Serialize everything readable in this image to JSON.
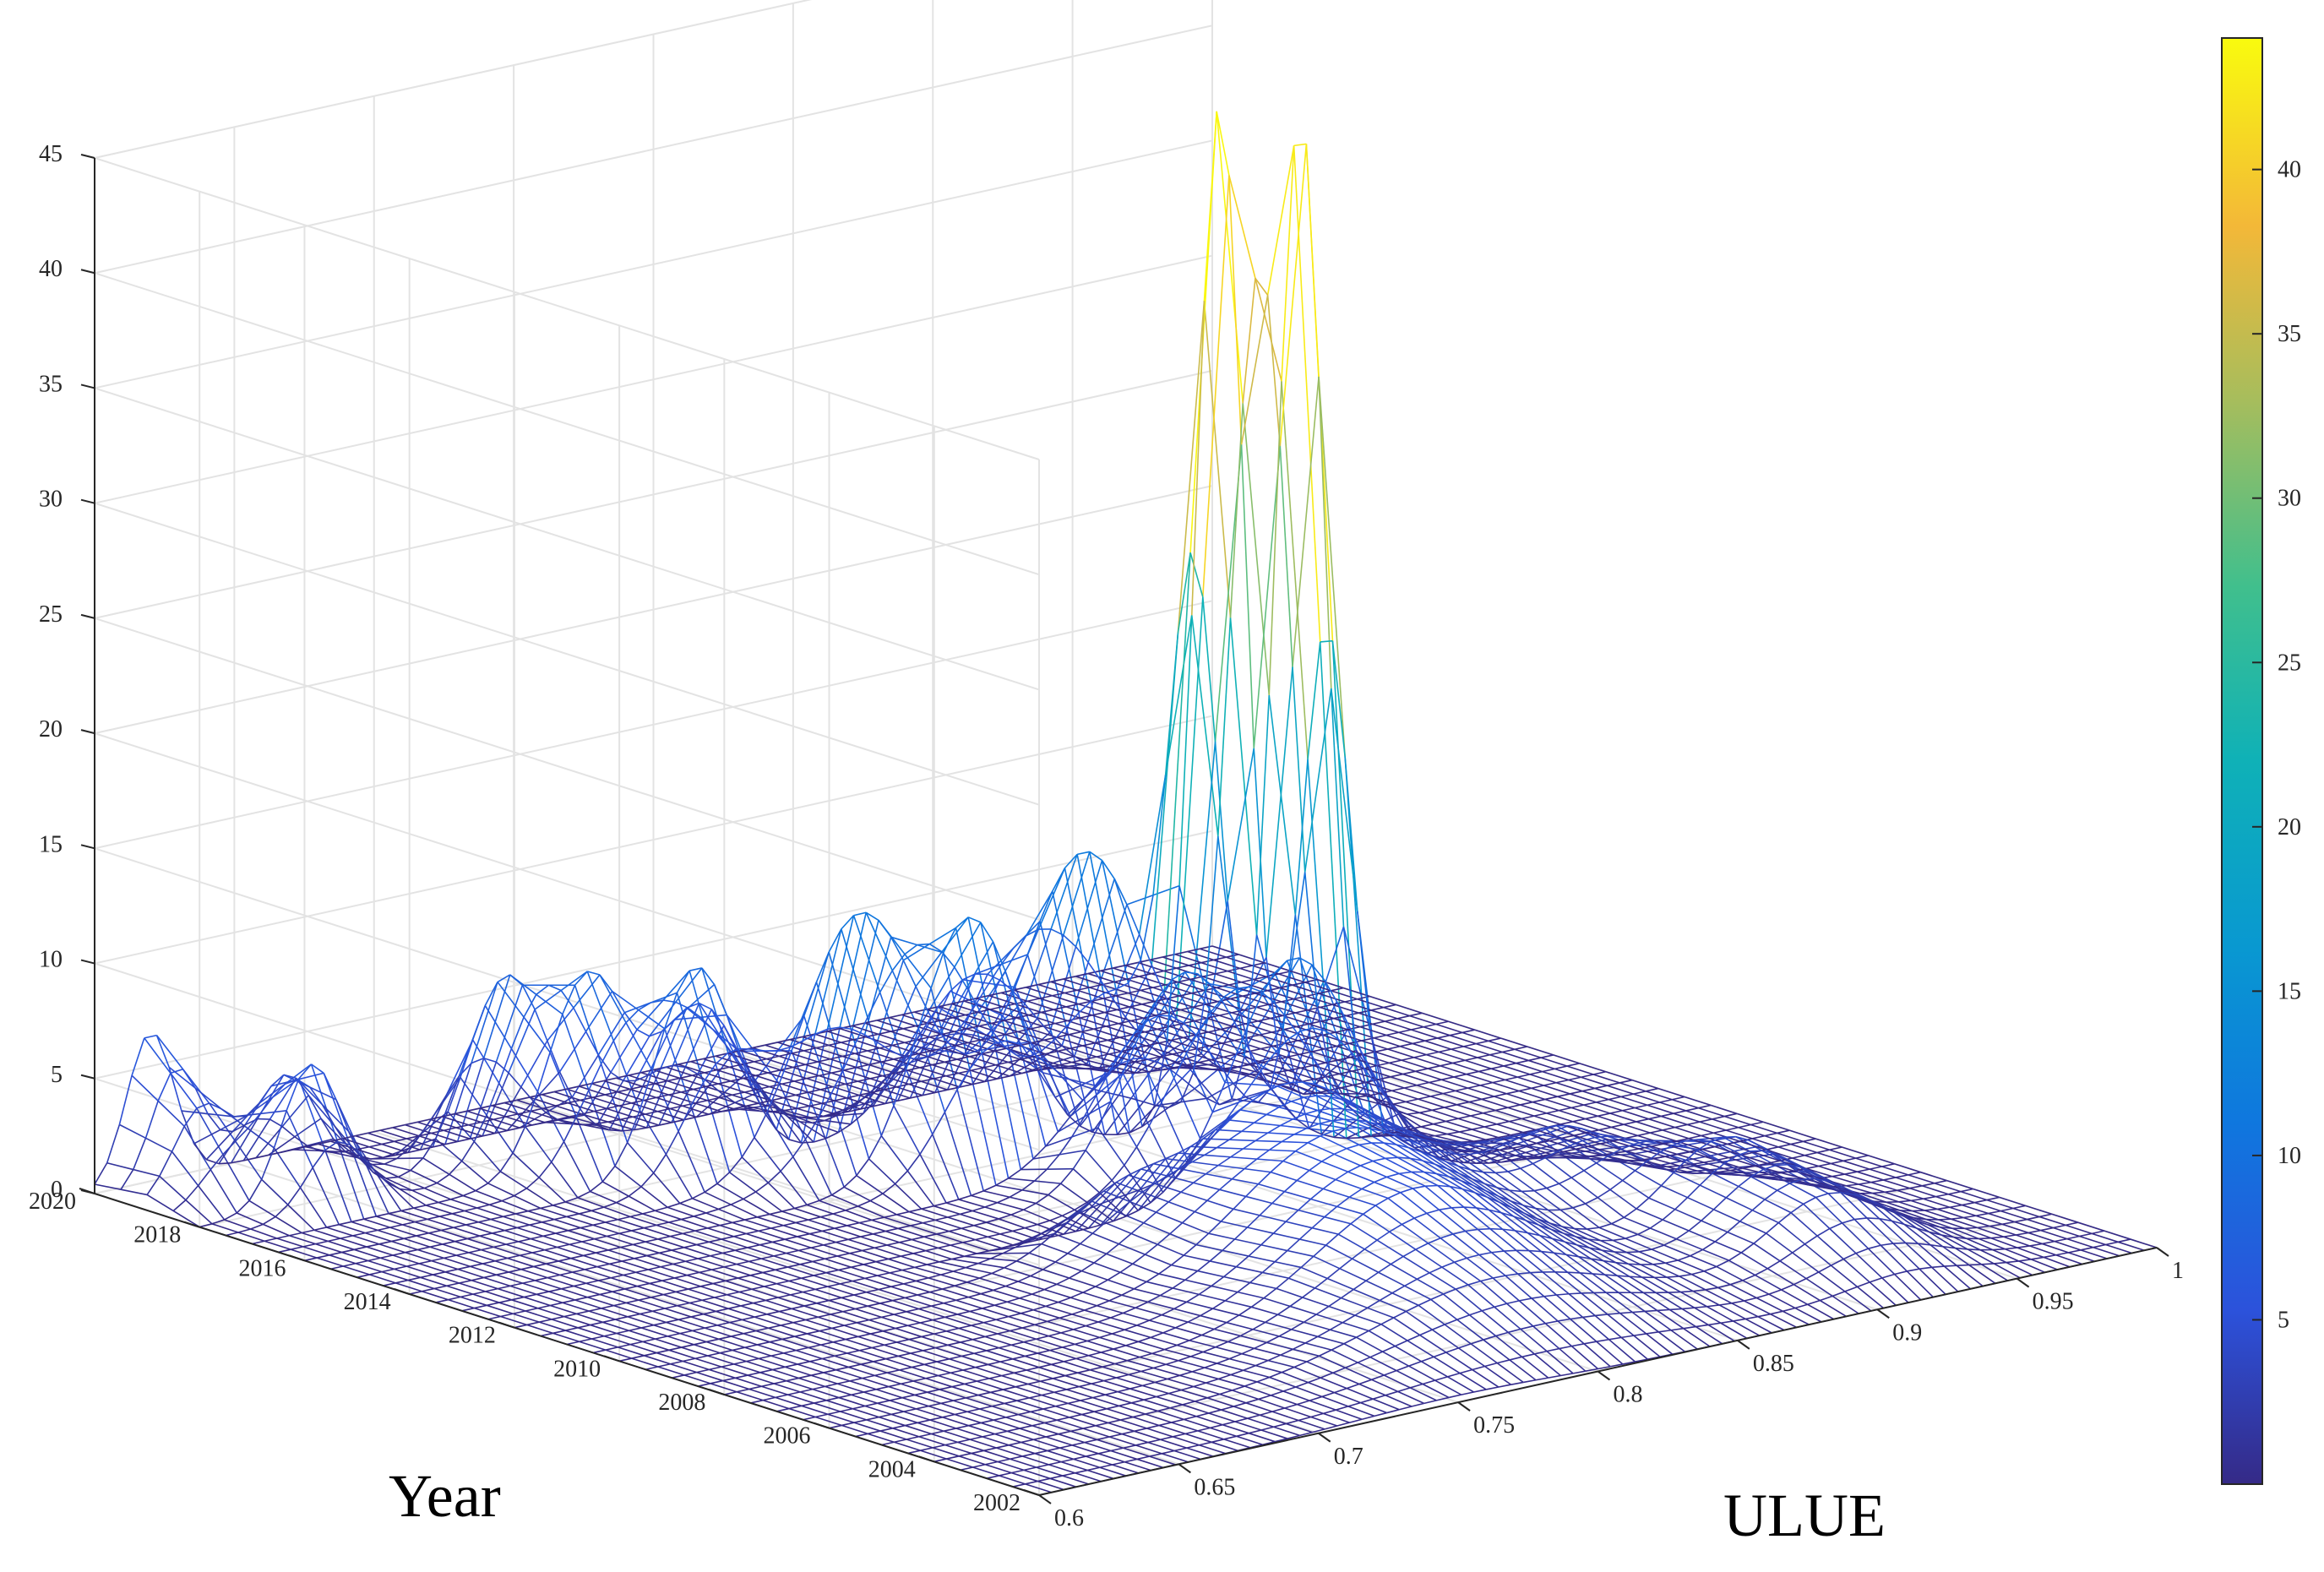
{
  "chart_data": {
    "type": "surface",
    "title": "",
    "xlabel": "ULUE",
    "ylabel": "Year",
    "zlabel": "",
    "x_ticks": [
      "0.6",
      "0.65",
      "0.7",
      "0.75",
      "0.8",
      "0.85",
      "0.9",
      "0.95",
      "1"
    ],
    "y_ticks": [
      "2002",
      "2004",
      "2006",
      "2008",
      "2010",
      "2012",
      "2014",
      "2016",
      "2018",
      "2020"
    ],
    "z_ticks": [
      "0",
      "5",
      "10",
      "15",
      "20",
      "25",
      "30",
      "35",
      "40",
      "45"
    ],
    "colorbar_ticks": [
      "5",
      "10",
      "15",
      "20",
      "25",
      "30",
      "35",
      "40"
    ],
    "xlim": [
      0.6,
      1.0
    ],
    "ylim": [
      2002,
      2020
    ],
    "zlim": [
      0,
      45
    ],
    "clim": [
      0,
      44
    ],
    "colormap": "parula",
    "grid": true,
    "series": [
      {
        "year": 2002,
        "peaks": [
          {
            "x": 0.75,
            "z": 0.3,
            "w": 0.05
          }
        ]
      },
      {
        "year": 2004,
        "peaks": [
          {
            "x": 0.8,
            "z": 2.6,
            "w": 0.06
          },
          {
            "x": 0.92,
            "z": 3.0,
            "w": 0.03
          }
        ]
      },
      {
        "year": 2006,
        "peaks": [
          {
            "x": 0.81,
            "z": 4.8,
            "w": 0.05
          },
          {
            "x": 0.92,
            "z": 4.0,
            "w": 0.03
          }
        ]
      },
      {
        "year": 2008,
        "peaks": [
          {
            "x": 0.82,
            "z": 5.6,
            "w": 0.05
          },
          {
            "x": 0.9,
            "z": 3.2,
            "w": 0.03
          }
        ]
      },
      {
        "year": 2010,
        "peaks": [
          {
            "x": 0.84,
            "z": 5.6,
            "w": 0.04
          },
          {
            "x": 0.78,
            "z": 2.5,
            "w": 0.03
          }
        ]
      },
      {
        "year": 2011,
        "peaks": [
          {
            "x": 0.86,
            "z": 9.8,
            "w": 0.03
          }
        ]
      },
      {
        "year": 2012,
        "peaks": [
          {
            "x": 0.84,
            "z": 9.0,
            "w": 0.03
          }
        ]
      },
      {
        "year": 2013,
        "peaks": [
          {
            "x": 0.9,
            "z": 44.0,
            "w": 0.012
          },
          {
            "x": 0.84,
            "z": 4.5,
            "w": 0.03
          }
        ]
      },
      {
        "year": 2014,
        "peaks": [
          {
            "x": 0.89,
            "z": 44.0,
            "w": 0.012
          },
          {
            "x": 0.8,
            "z": 11.0,
            "w": 0.025
          }
        ]
      },
      {
        "year": 2015,
        "peaks": [
          {
            "x": 0.86,
            "z": 11.5,
            "w": 0.03
          },
          {
            "x": 0.78,
            "z": 11.0,
            "w": 0.03
          }
        ]
      },
      {
        "year": 2016,
        "peaks": [
          {
            "x": 0.74,
            "z": 9.0,
            "w": 0.02
          },
          {
            "x": 0.84,
            "z": 6.0,
            "w": 0.03
          }
        ]
      },
      {
        "year": 2017,
        "peaks": [
          {
            "x": 0.72,
            "z": 8.5,
            "w": 0.02
          },
          {
            "x": 0.76,
            "z": 6.0,
            "w": 0.02
          }
        ]
      },
      {
        "year": 2018,
        "peaks": [
          {
            "x": 0.64,
            "z": 6.0,
            "w": 0.015
          },
          {
            "x": 0.71,
            "z": 8.0,
            "w": 0.02
          }
        ]
      },
      {
        "year": 2019,
        "peaks": [
          {
            "x": 0.62,
            "z": 4.0,
            "w": 0.015
          },
          {
            "x": 0.65,
            "z": 4.5,
            "w": 0.015
          }
        ]
      },
      {
        "year": 2020,
        "peaks": [
          {
            "x": 0.62,
            "z": 6.5,
            "w": 0.012
          }
        ]
      }
    ]
  }
}
